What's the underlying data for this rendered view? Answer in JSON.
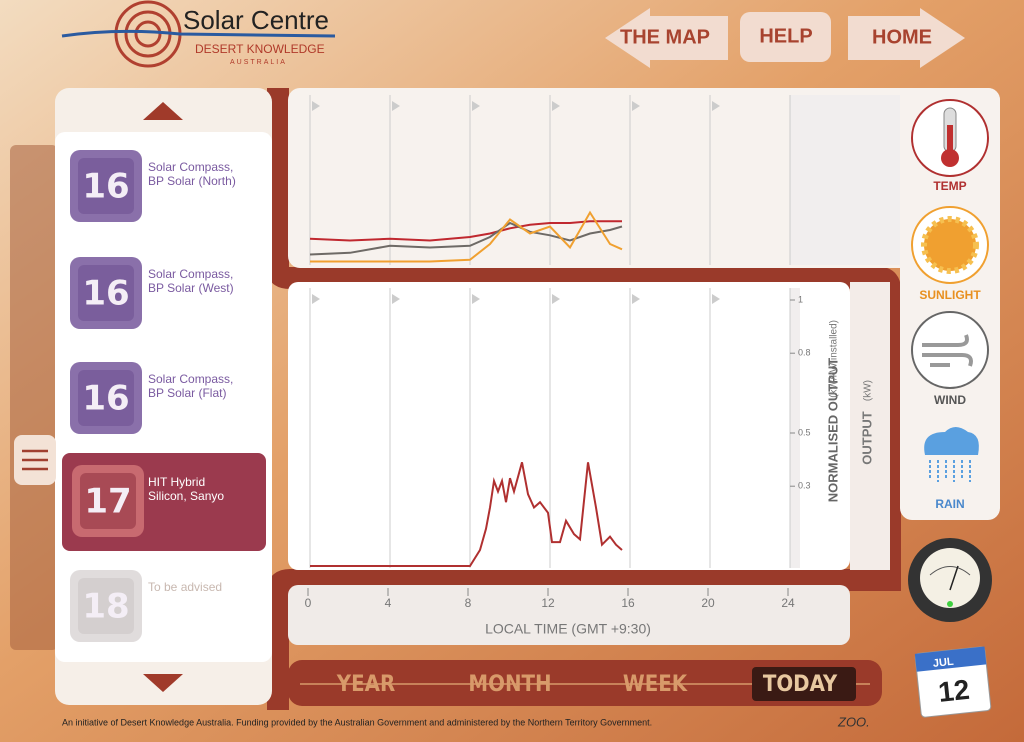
{
  "header": {
    "logo_title": "Solar Centre",
    "logo_subtitle": "DESERT KNOWLEDGE",
    "logo_region": "AUSTRALIA"
  },
  "nav": [
    "THE MAP",
    "HELP",
    "HOME"
  ],
  "panels": [
    {
      "number": 16,
      "label": [
        "Solar Compass,",
        "BP Solar (North)"
      ]
    },
    {
      "number": 16,
      "label": [
        "Solar Compass,",
        "BP Solar (West)"
      ]
    },
    {
      "number": 16,
      "label": [
        "Solar Compass,",
        "BP Solar (Flat)"
      ]
    },
    {
      "number": 17,
      "label": [
        "HIT Hybrid",
        "Silicon, Sanyo"
      ]
    },
    {
      "number": 18,
      "label": [
        "To be advised"
      ]
    }
  ],
  "weather": [
    "TEMP",
    "SUNLIGHT",
    "WIND",
    "RAIN"
  ],
  "periods": [
    "YEAR",
    "MONTH",
    "WEEK",
    "TODAY"
  ],
  "calendar": {
    "month": "JUL",
    "day": 12
  },
  "footer": {
    "note": "An initiative of Desert Knowledge Australia. Funding provided by the Australian Government and administered by the Northern Territory Government.",
    "brand": "ZOO."
  },
  "chart_data": [
    {
      "type": "line",
      "x": [
        0,
        2,
        4,
        6,
        8,
        9,
        10,
        11,
        12,
        13,
        14,
        15,
        15.6
      ],
      "xlim": [
        0,
        24
      ],
      "ylim": [
        0,
        100
      ],
      "series": [
        {
          "color": "#c0282f",
          "values": [
            15,
            14,
            15,
            14,
            16,
            18,
            21,
            23,
            24,
            24,
            25,
            25,
            25
          ]
        },
        {
          "color": "#6e6a66",
          "values": [
            6,
            7,
            11,
            10,
            11,
            16,
            24,
            19,
            17,
            14,
            18,
            20,
            22
          ]
        },
        {
          "color": "#f0a030",
          "values": [
            2,
            2,
            2,
            2,
            3,
            12,
            26,
            18,
            22,
            10,
            30,
            12,
            9
          ]
        }
      ]
    },
    {
      "type": "line",
      "x_label": "LOCAL TIME (GMT +9:30)",
      "y_label": "NORMALISED OUTPUT",
      "y_unit": "(kW/kW installed)",
      "y2_label": "OUTPUT",
      "y2_unit": "(kW)",
      "x": [
        0,
        8,
        8.5,
        8.8,
        9.0,
        9.2,
        9.4,
        9.6,
        9.8,
        10.0,
        10.2,
        10.6,
        10.9,
        11.2,
        11.5,
        11.9,
        12.1,
        12.5,
        12.8,
        13.2,
        13.5,
        13.9,
        14.3,
        14.6,
        15.0,
        15.3,
        15.6
      ],
      "xlim": [
        0,
        24
      ],
      "xticks": [
        0,
        4,
        8,
        12,
        16,
        20,
        24
      ],
      "ylim": [
        0,
        1
      ],
      "yticks": [
        0.3,
        0.5,
        0.8,
        1
      ],
      "series": [
        {
          "color": "#b03030",
          "values": [
            0,
            0,
            0.06,
            0.14,
            0.22,
            0.32,
            0.28,
            0.32,
            0.24,
            0.33,
            0.28,
            0.39,
            0.27,
            0.22,
            0.24,
            0.2,
            0.09,
            0.09,
            0.17,
            0.12,
            0.1,
            0.39,
            0.22,
            0.08,
            0.11,
            0.08,
            0.06
          ]
        }
      ]
    }
  ]
}
